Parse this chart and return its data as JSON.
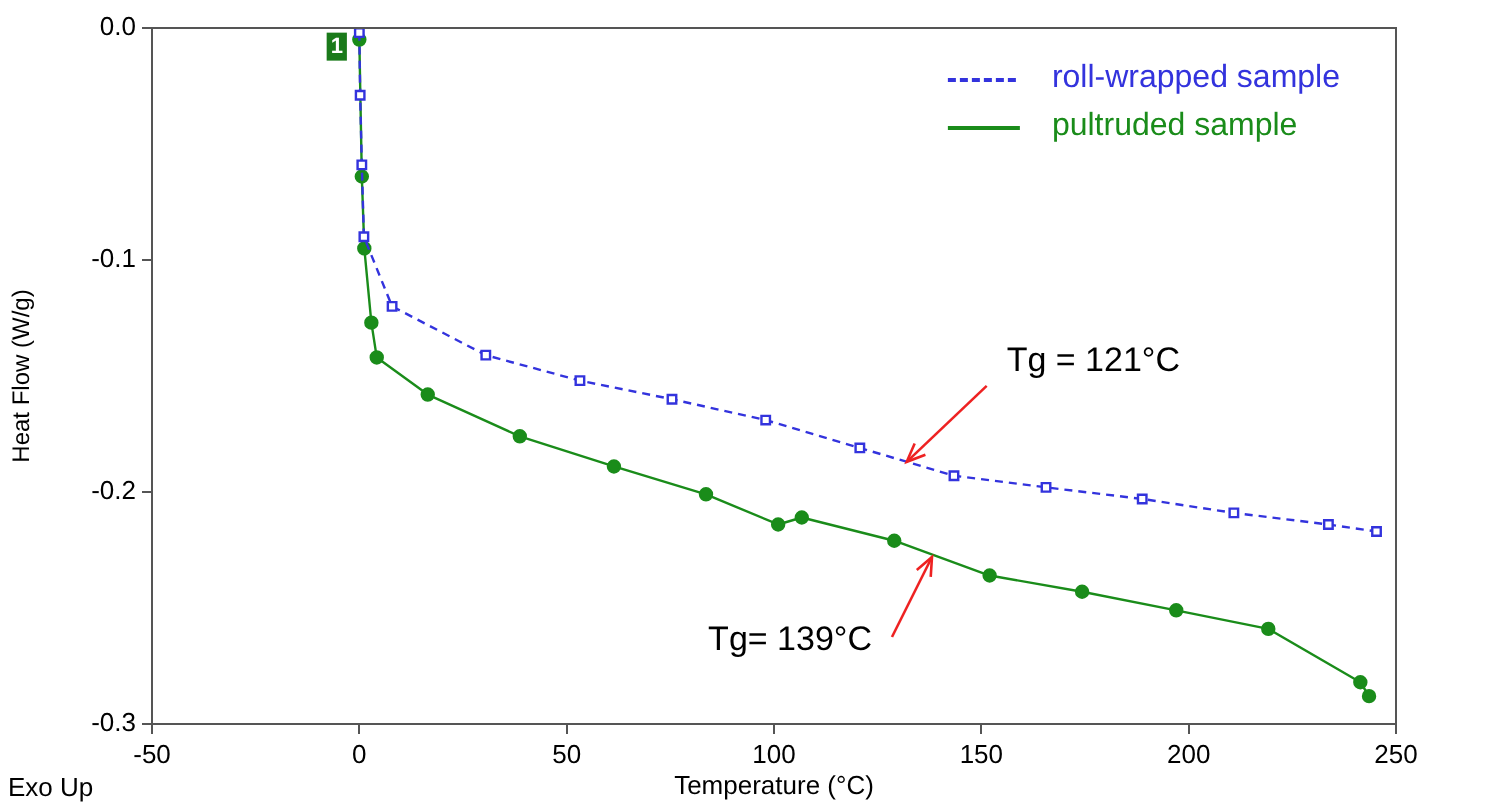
{
  "chart_data": {
    "type": "line",
    "xlabel": "Temperature (°C)",
    "ylabel": "Heat Flow (W/g)",
    "xlim": [
      -50,
      250
    ],
    "xticks": [
      -50,
      0,
      50,
      100,
      150,
      200,
      250
    ],
    "ylim": [
      -0.3,
      0
    ],
    "yticks": [
      {
        "value": -0.3,
        "label": "-0.3"
      },
      {
        "value": -0.2,
        "label": "-0.2"
      },
      {
        "value": -0.1,
        "label": "-0.1"
      },
      {
        "value": 0,
        "label": "0.0"
      }
    ],
    "grid": false,
    "legend": "top right",
    "series": [
      {
        "name": "roll-wrapped sample",
        "color": "#3333dd",
        "line_style": "dashed",
        "marker": "square",
        "x": [
          0,
          0.2,
          0.6,
          1.1,
          7.9,
          30.5,
          53.2,
          75.4,
          98,
          120.7,
          143.4,
          165.6,
          188.8,
          210.9,
          233.7,
          245.3
        ],
        "values": [
          -0.002,
          -0.029,
          -0.059,
          -0.09,
          -0.12,
          -0.141,
          -0.152,
          -0.16,
          -0.169,
          -0.181,
          -0.193,
          -0.198,
          -0.203,
          -0.209,
          -0.214,
          -0.217
        ]
      },
      {
        "name": "pultruded sample",
        "color": "#1a8c1a",
        "line_style": "solid",
        "marker": "circle",
        "x": [
          0,
          0.6,
          1.2,
          2.9,
          4.2,
          16.5,
          38.7,
          61.4,
          83.6,
          101,
          106.7,
          129,
          152,
          174.3,
          197,
          219.2,
          241.4,
          243.5
        ],
        "values": [
          -0.005,
          -0.064,
          -0.095,
          -0.127,
          -0.142,
          -0.158,
          -0.176,
          -0.189,
          -0.201,
          -0.214,
          -0.211,
          -0.221,
          -0.236,
          -0.243,
          -0.251,
          -0.259,
          -0.282,
          -0.288
        ]
      }
    ],
    "annotations": [
      {
        "text": "Tg = 121°C",
        "x": 132,
        "y": -0.187
      },
      {
        "text": "Tg= 139°C",
        "x": 138.1,
        "y": -0.228
      },
      {
        "text": "1",
        "x": -3,
        "y": -0.002
      },
      "Exo Up"
    ]
  }
}
